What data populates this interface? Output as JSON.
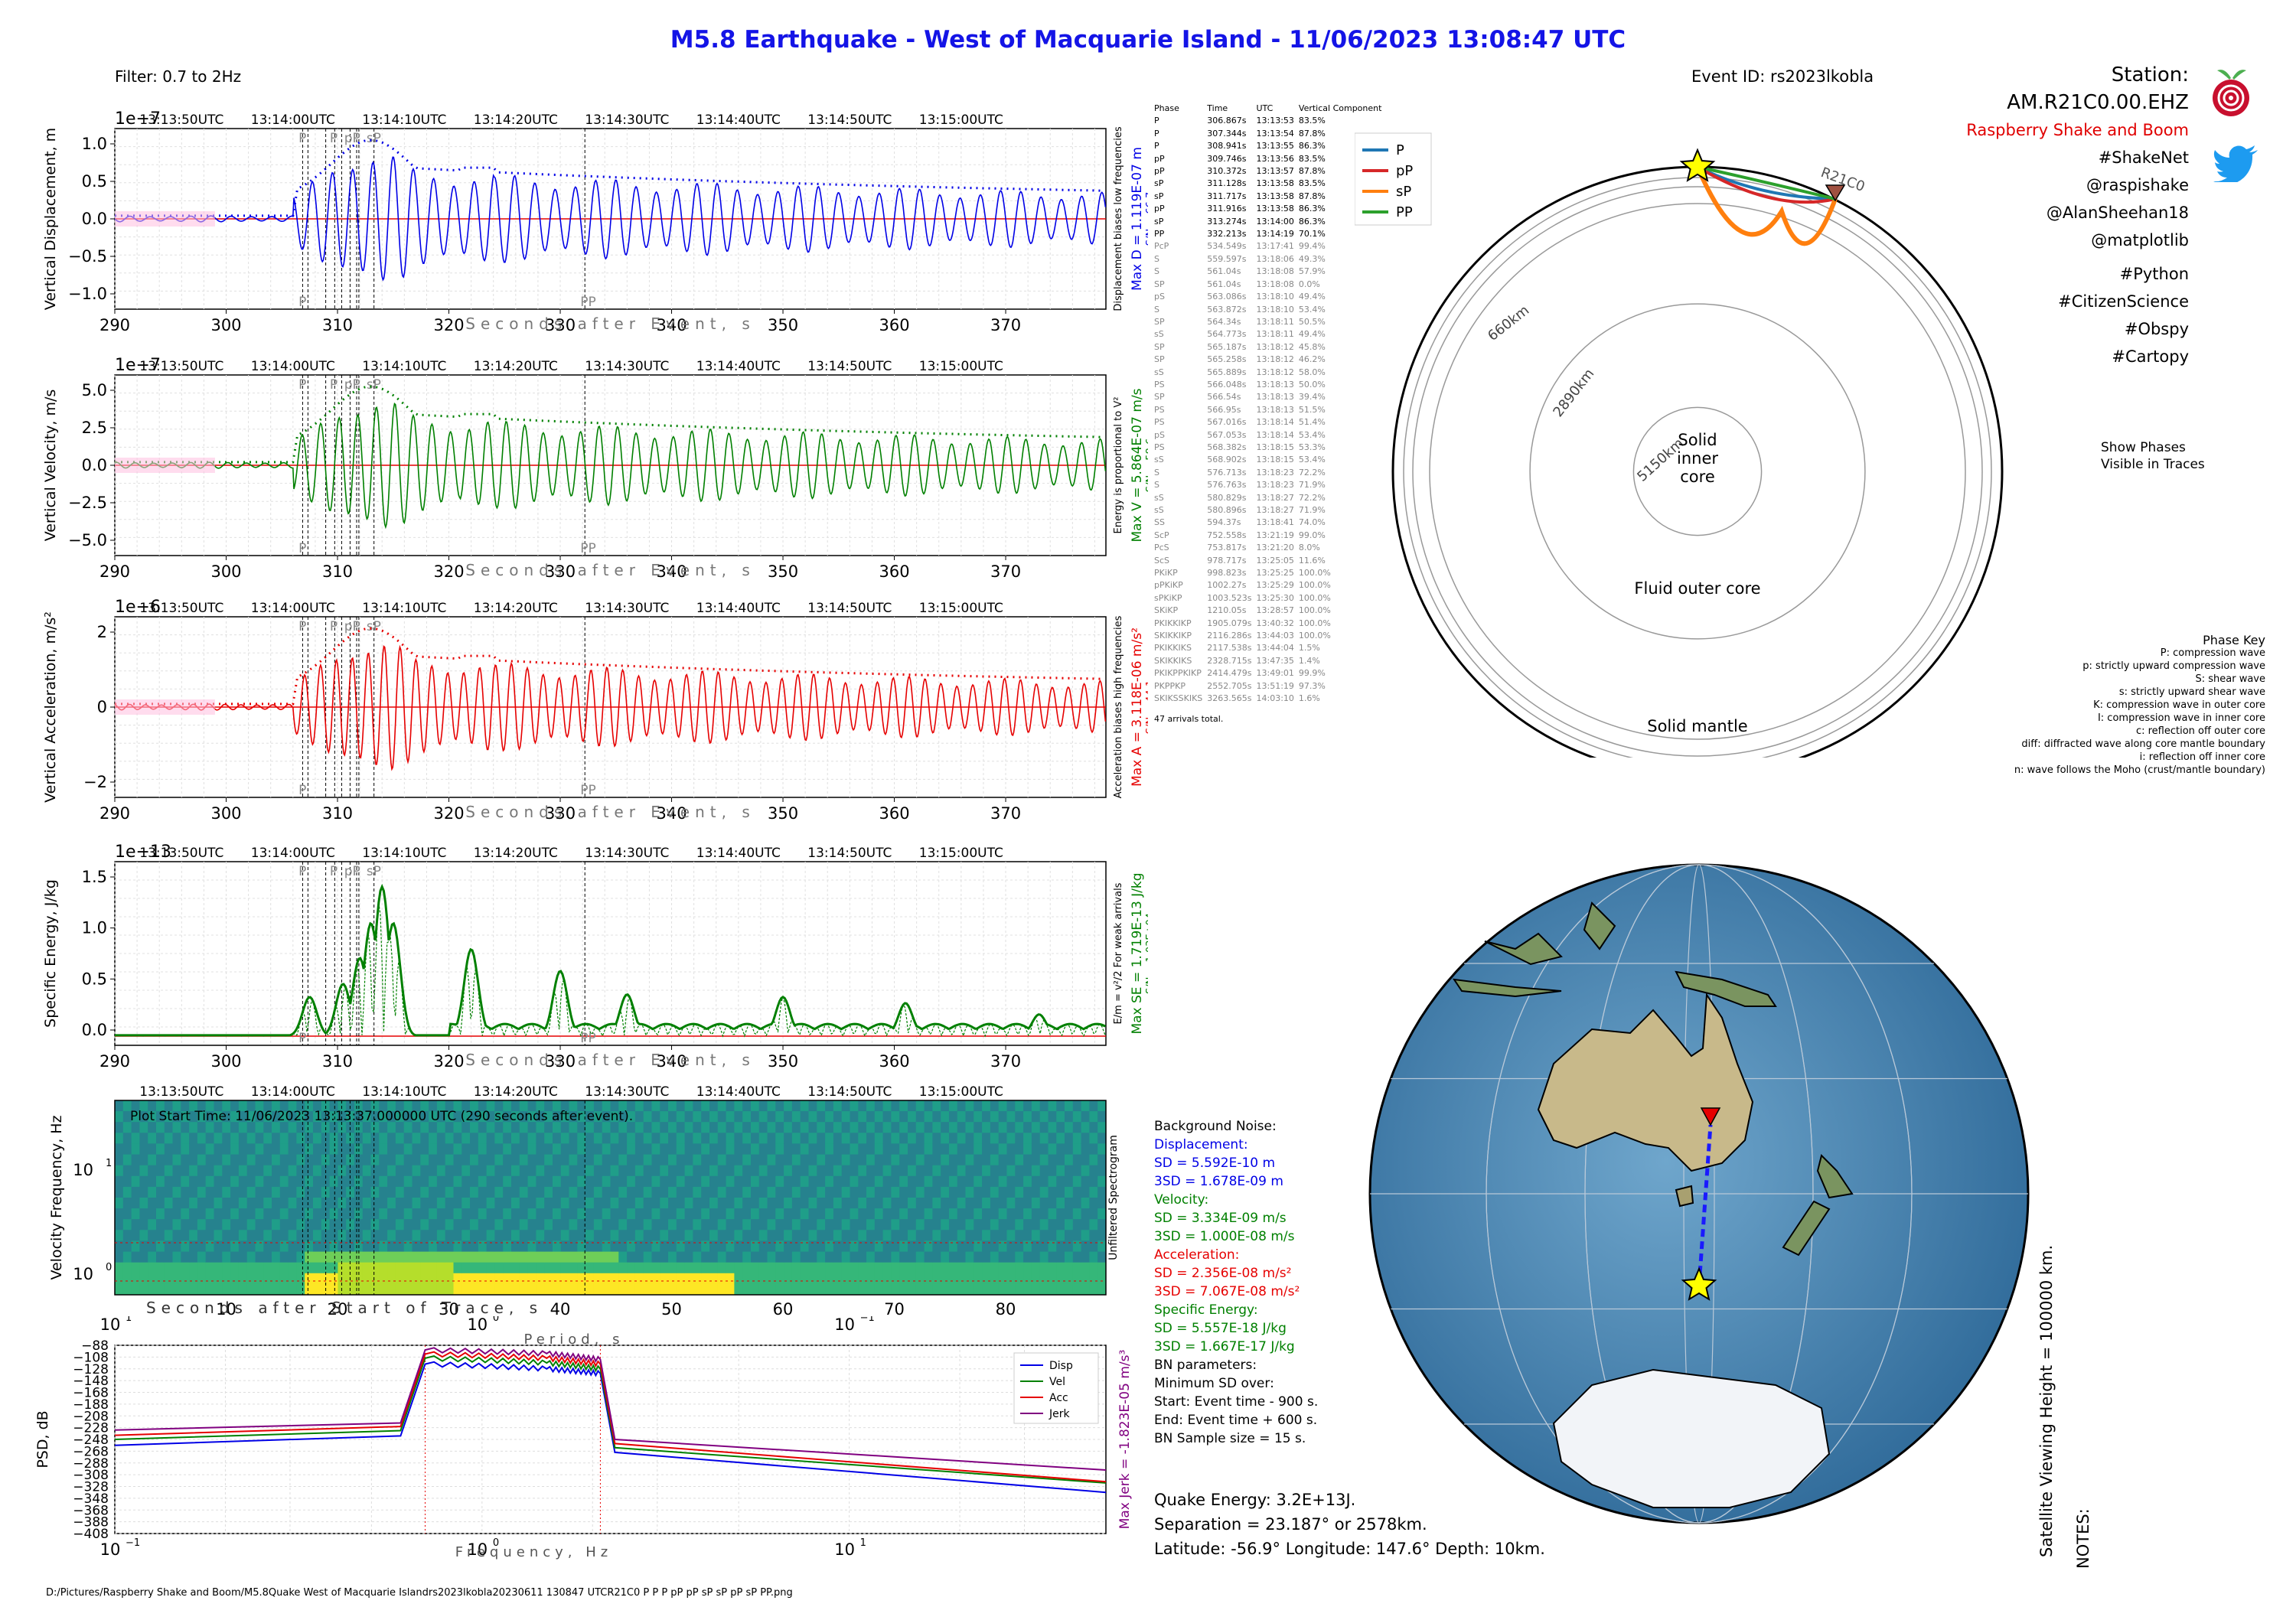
{
  "header": {
    "title": "M5.8 Earthquake - West of Macquarie Island -  11/06/2023 13:08:47 UTC",
    "filter": "Filter: 0.7 to 2Hz",
    "event_id": "Event ID: rs2023lkobla",
    "station": "Station: AM.R21C0.00.EHZ",
    "org": "Raspberry Shake and Boom",
    "tags": [
      "#ShakeNet",
      "@raspishake",
      "@AlanSheehan18",
      "@matplotlib",
      "#Python",
      "#CitizenScience",
      "#Obspy",
      "#Cartopy"
    ]
  },
  "time_axis_top": [
    "13:13:50UTC",
    "13:14:00UTC",
    "13:14:10UTC",
    "13:14:20UTC",
    "13:14:30UTC",
    "13:14:40UTC",
    "13:14:50UTC",
    "13:15:00UTC"
  ],
  "xlabel": "Seconds after Event, s",
  "panels": [
    {
      "ylabel": "Vertical Displacement, m",
      "exp": "1e−7",
      "yticks": [
        "1.0",
        "0.5",
        "0.0",
        "−0.5",
        "−1.0"
      ],
      "side": "Displacement biases low frequencies",
      "max": "Max D = 1.119E-07 m",
      "sn": "S/N = 66.7",
      "color": "#0000e6"
    },
    {
      "ylabel": "Vertical Velocity, m/s",
      "exp": "1e−7",
      "yticks": [
        "5.0",
        "2.5",
        "0.0",
        "−2.5",
        "−5.0"
      ],
      "side": "Energy is proportional to V²",
      "max": "Max V = 5.864E-07 m/s",
      "sn": "S/N = 58.6",
      "color": "#008000"
    },
    {
      "ylabel": "Vertical Acceleration, m/s²",
      "exp": "1e−6",
      "yticks": [
        "2",
        "0",
        "−2"
      ],
      "side": "Acceleration biases high frequencies",
      "max": "Max A = 3.118E-06 m/s²",
      "sn": "S/N = 44.1",
      "color": "#e60000"
    },
    {
      "ylabel": "Specific Energy, J/kg",
      "exp": "1e−13",
      "yticks": [
        "1.5",
        "1.0",
        "0.5",
        "0.0"
      ],
      "side": "E/m = v²/2  For weak arrivals",
      "max": "Max SE = 1.719E-13 J/kg",
      "sn": "S/N = 1.03E+04",
      "color": "#008000"
    }
  ],
  "spectrogram": {
    "ylabel": "Velocity Frequency, Hz",
    "text": "Plot Start Time:  11/06/2023 13:13:37.000000 UTC (290 seconds after event).",
    "xlabel": "Seconds after Start of Trace, s",
    "xticks": [
      "10",
      "20",
      "30",
      "40",
      "50",
      "60",
      "70",
      "80"
    ],
    "side": "Unfiltered Spectrogram"
  },
  "psd": {
    "ylabel": "PSD, dB",
    "xlabel": "Frequency, Hz",
    "period_label": "Period, s",
    "max_jerk": "Max Jerk = -1.823E-05 m/s³",
    "legend": [
      "Disp",
      "Vel",
      "Acc",
      "Jerk"
    ],
    "yticks": [
      "−88",
      "−108",
      "−128",
      "−148",
      "−168",
      "−188",
      "−208",
      "−228",
      "−248",
      "−268",
      "−288",
      "−308",
      "−328",
      "−348",
      "−368",
      "−388",
      "−408"
    ]
  },
  "phases_header": [
    "Phase",
    "Time",
    "UTC",
    "Vertical Component"
  ],
  "phases_black": [
    [
      "P",
      "306.867s",
      "13:13:53",
      "83.5%"
    ],
    [
      "P",
      "307.344s",
      "13:13:54",
      "87.8%"
    ],
    [
      "P",
      "308.941s",
      "13:13:55",
      "86.3%"
    ],
    [
      "pP",
      "309.746s",
      "13:13:56",
      "83.5%"
    ],
    [
      "pP",
      "310.372s",
      "13:13:57",
      "87.8%"
    ],
    [
      "sP",
      "311.128s",
      "13:13:58",
      "83.5%"
    ],
    [
      "sP",
      "311.717s",
      "13:13:58",
      "87.8%"
    ],
    [
      "pP",
      "311.916s",
      "13:13:58",
      "86.3%"
    ],
    [
      "sP",
      "313.274s",
      "13:14:00",
      "86.3%"
    ],
    [
      "PP",
      "332.213s",
      "13:14:19",
      "70.1%"
    ]
  ],
  "phases_gray": [
    [
      "PcP",
      "534.549s",
      "13:17:41",
      "99.4%"
    ],
    [
      "S",
      "559.597s",
      "13:18:06",
      "49.3%"
    ],
    [
      "S",
      "561.04s",
      "13:18:08",
      "57.9%"
    ],
    [
      "SP",
      "561.04s",
      "13:18:08",
      "0.0%"
    ],
    [
      "pS",
      "563.086s",
      "13:18:10",
      "49.4%"
    ],
    [
      "S",
      "563.872s",
      "13:18:10",
      "53.4%"
    ],
    [
      "SP",
      "564.34s",
      "13:18:11",
      "50.5%"
    ],
    [
      "sS",
      "564.773s",
      "13:18:11",
      "49.4%"
    ],
    [
      "SP",
      "565.187s",
      "13:18:12",
      "45.8%"
    ],
    [
      "SP",
      "565.258s",
      "13:18:12",
      "46.2%"
    ],
    [
      "sS",
      "565.889s",
      "13:18:12",
      "58.0%"
    ],
    [
      "PS",
      "566.048s",
      "13:18:13",
      "50.0%"
    ],
    [
      "SP",
      "566.54s",
      "13:18:13",
      "39.4%"
    ],
    [
      "PS",
      "566.95s",
      "13:18:13",
      "51.5%"
    ],
    [
      "PS",
      "567.016s",
      "13:18:14",
      "51.4%"
    ],
    [
      "pS",
      "567.053s",
      "13:18:14",
      "53.4%"
    ],
    [
      "PS",
      "568.382s",
      "13:18:15",
      "53.3%"
    ],
    [
      "sS",
      "568.902s",
      "13:18:15",
      "53.4%"
    ],
    [
      "S",
      "576.713s",
      "13:18:23",
      "72.2%"
    ],
    [
      "S",
      "576.763s",
      "13:18:23",
      "71.9%"
    ],
    [
      "sS",
      "580.829s",
      "13:18:27",
      "72.2%"
    ],
    [
      "sS",
      "580.896s",
      "13:18:27",
      "71.9%"
    ],
    [
      "SS",
      "594.37s",
      "13:18:41",
      "74.0%"
    ],
    [
      "ScP",
      "752.558s",
      "13:21:19",
      "99.0%"
    ],
    [
      "PcS",
      "753.817s",
      "13:21:20",
      "8.0%"
    ],
    [
      "ScS",
      "978.717s",
      "13:25:05",
      "11.6%"
    ],
    [
      "PKiKP",
      "998.823s",
      "13:25:25",
      "100.0%"
    ],
    [
      "pPKiKP",
      "1002.27s",
      "13:25:29",
      "100.0%"
    ],
    [
      "sPKiKP",
      "1003.523s",
      "13:25:30",
      "100.0%"
    ],
    [
      "SKiKP",
      "1210.05s",
      "13:28:57",
      "100.0%"
    ],
    [
      "PKIKKIKP",
      "1905.079s",
      "13:40:32",
      "100.0%"
    ],
    [
      "SKIKKIKP",
      "2116.286s",
      "13:44:03",
      "100.0%"
    ],
    [
      "PKIKKIKS",
      "2117.538s",
      "13:44:04",
      "1.5%"
    ],
    [
      "SKIKKIKS",
      "2328.715s",
      "13:47:35",
      "1.4%"
    ],
    [
      "PKIKPPKIKP",
      "2414.479s",
      "13:49:01",
      "99.9%"
    ],
    [
      "PKPPKP",
      "2552.705s",
      "13:51:19",
      "97.3%"
    ],
    [
      "SKIKSSKIKS",
      "3263.565s",
      "14:03:10",
      "1.6%"
    ]
  ],
  "arrivals_total": "47 arrivals total.",
  "globe": {
    "station_label": "R21C0",
    "legend": [
      "P",
      "pP",
      "sP",
      "PP"
    ],
    "depths": [
      "660km",
      "2890km",
      "5150km"
    ],
    "inner": "Solid inner core",
    "outer": "Fluid outer core",
    "mantle": "Solid mantle"
  },
  "show_phases": "Show Phases Visible in Traces",
  "phase_key": {
    "title": "Phase Key",
    "lines": [
      "P:   compression wave",
      "p:   strictly upward compression wave",
      "S:   shear wave",
      "s:   strictly upward shear wave",
      "K:   compression wave in outer core",
      "I:   compression wave in inner core",
      "c:   reflection off outer core",
      "diff:   diffracted wave along core mantle boundary",
      "i:   reflection off inner core",
      "n:   wave follows the Moho (crust/mantle boundary)"
    ]
  },
  "noise": [
    {
      "t": "Background Noise:",
      "c": "#000"
    },
    {
      "t": "Displacement:",
      "c": "#0000e6"
    },
    {
      "t": "SD = 5.592E-10 m",
      "c": "#0000e6"
    },
    {
      "t": "3SD = 1.678E-09 m",
      "c": "#0000e6"
    },
    {
      "t": "Velocity:",
      "c": "#008000"
    },
    {
      "t": "SD = 3.334E-09 m/s",
      "c": "#008000"
    },
    {
      "t": "3SD = 1.000E-08 m/s",
      "c": "#008000"
    },
    {
      "t": "Acceleration:",
      "c": "#e60000"
    },
    {
      "t": "SD = 2.356E-08 m/s²",
      "c": "#e60000"
    },
    {
      "t": "3SD = 7.067E-08 m/s²",
      "c": "#e60000"
    },
    {
      "t": "Specific Energy:",
      "c": "#008000"
    },
    {
      "t": "SD = 5.557E-18 J/kg",
      "c": "#008000"
    },
    {
      "t": "3SD = 1.667E-17 J/kg",
      "c": "#008000"
    },
    {
      "t": "BN parameters:",
      "c": "#000"
    },
    {
      "t": "Minimum SD over:",
      "c": "#000"
    },
    {
      "t": "Start: Event time - 900 s.",
      "c": "#000"
    },
    {
      "t": "End: Event time + 600 s.",
      "c": "#000"
    },
    {
      "t": "BN Sample size = 15 s.",
      "c": "#000"
    }
  ],
  "quake": {
    "energy": "Quake Energy: 3.2E+13J.",
    "separation": "Separation = 23.187° or 2578km.",
    "location": "Latitude: -56.9° Longitude: 147.6° Depth: 10km."
  },
  "satellite": "Satellite Viewing Height = 100000 km.",
  "notes": "NOTES:",
  "filepath": "D:/Pictures/Raspberry Shake and Boom/M5.8Quake West of Macquarie Islandrs2023lkobla20230611 130847 UTCR21C0 P P P pP pP sP sP pP sP PP.png",
  "chart_data": [
    {
      "type": "line",
      "title": "Vertical Displacement",
      "x_range": [
        290,
        379
      ],
      "ylim": [
        -1.2e-07,
        1.2e-07
      ],
      "max": 1.119e-07,
      "arrivals": {
        "P": [
          306.867,
          307.344,
          308.941
        ],
        "pP": [
          309.746,
          310.372,
          311.916
        ],
        "sP": [
          311.128,
          311.717,
          313.274
        ],
        "PP": [
          332.213
        ]
      }
    },
    {
      "type": "line",
      "title": "Vertical Velocity",
      "x_range": [
        290,
        379
      ],
      "ylim": [
        -6e-07,
        6.5e-07
      ],
      "max": 5.864e-07
    },
    {
      "type": "line",
      "title": "Vertical Acceleration",
      "x_range": [
        290,
        379
      ],
      "ylim": [
        -3.2e-06,
        3.5e-06
      ],
      "max": 3.118e-06
    },
    {
      "type": "line",
      "title": "Specific Energy",
      "x_range": [
        290,
        379
      ],
      "ylim": [
        0,
        1.85e-13
      ],
      "max": 1.719e-13,
      "peaks": [
        [
          307.5,
          0.45
        ],
        [
          310.5,
          0.6
        ],
        [
          312,
          0.9
        ],
        [
          313,
          1.3
        ],
        [
          314,
          1.72
        ],
        [
          315,
          1.3
        ],
        [
          322,
          1.0
        ],
        [
          330,
          0.75
        ],
        [
          336,
          0.48
        ],
        [
          350,
          0.45
        ],
        [
          361,
          0.38
        ],
        [
          373,
          0.25
        ]
      ]
    },
    {
      "type": "heatmap",
      "title": "Unfiltered Spectrogram",
      "x_range": [
        0,
        89
      ],
      "y_range_hz": [
        0.6,
        50
      ],
      "yscale": "log"
    },
    {
      "type": "line",
      "title": "PSD",
      "xscale": "log",
      "x_range": [
        0.1,
        50
      ],
      "ylim": [
        -408,
        -88
      ],
      "series": [
        {
          "name": "Disp",
          "x": [
            0.1,
            0.6,
            0.7,
            1.5,
            2.1,
            2.3,
            50
          ],
          "y": [
            -258,
            -242,
            -120,
            -128,
            -136,
            -270,
            -338
          ]
        },
        {
          "name": "Vel",
          "x": [
            0.1,
            0.6,
            0.7,
            1.5,
            2.1,
            2.3,
            50
          ],
          "y": [
            -248,
            -233,
            -110,
            -118,
            -128,
            -262,
            -322
          ]
        },
        {
          "name": "Acc",
          "x": [
            0.1,
            0.6,
            0.7,
            1.5,
            2.1,
            2.3,
            50
          ],
          "y": [
            -241,
            -226,
            -103,
            -110,
            -120,
            -255,
            -320
          ]
        },
        {
          "name": "Jerk",
          "x": [
            0.1,
            0.6,
            0.7,
            1.5,
            2.1,
            2.3,
            50
          ],
          "y": [
            -232,
            -220,
            -96,
            -102,
            -112,
            -248,
            -300
          ]
        }
      ]
    }
  ],
  "colors": {
    "title": "#1414e6",
    "disp": "#0000e6",
    "vel": "#008000",
    "acc": "#e60000",
    "jerk": "#800080",
    "star": "#ffff00"
  }
}
